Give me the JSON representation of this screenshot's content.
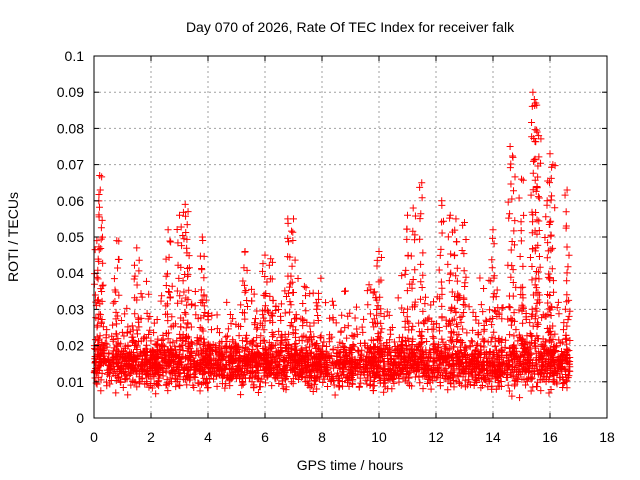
{
  "chart_data": {
    "type": "scatter",
    "title": "Day 070 of 2026, Rate Of TEC Index for receiver falk",
    "xlabel": "GPS time / hours",
    "ylabel": "ROTI / TECUs",
    "xlim": [
      0,
      18
    ],
    "ylim": [
      0,
      0.1
    ],
    "x_ticks": [
      "0",
      "2",
      "4",
      "6",
      "8",
      "10",
      "12",
      "14",
      "16",
      "18"
    ],
    "y_ticks": [
      "0",
      "0.01",
      "0.02",
      "0.03",
      "0.04",
      "0.05",
      "0.06",
      "0.07",
      "0.08",
      "0.09",
      "0.1"
    ],
    "grid": true,
    "marker": "plus",
    "color": "#ff0000",
    "x_coverage_hours": [
      0,
      16.7
    ],
    "y_bulk_range": [
      0.005,
      0.025
    ],
    "x": [
      0.1,
      0.2,
      0.22,
      0.8,
      1.5,
      2.6,
      3.0,
      3.2,
      3.3,
      3.8,
      5.3,
      6.0,
      6.2,
      6.8,
      7.0,
      10.0,
      11.0,
      11.2,
      11.5,
      12.2,
      12.5,
      12.7,
      13.0,
      14.0,
      14.6,
      14.7,
      15.0,
      15.4,
      15.45,
      15.5,
      15.55,
      15.6,
      15.9,
      16.0,
      16.1,
      16.6
    ],
    "y": [
      0.049,
      0.067,
      0.063,
      0.049,
      0.047,
      0.052,
      0.056,
      0.059,
      0.057,
      0.05,
      0.046,
      0.045,
      0.044,
      0.055,
      0.055,
      0.046,
      0.056,
      0.058,
      0.065,
      0.06,
      0.056,
      0.055,
      0.054,
      0.052,
      0.075,
      0.072,
      0.066,
      0.09,
      0.088,
      0.087,
      0.079,
      0.078,
      0.06,
      0.073,
      0.07,
      0.063
    ]
  }
}
